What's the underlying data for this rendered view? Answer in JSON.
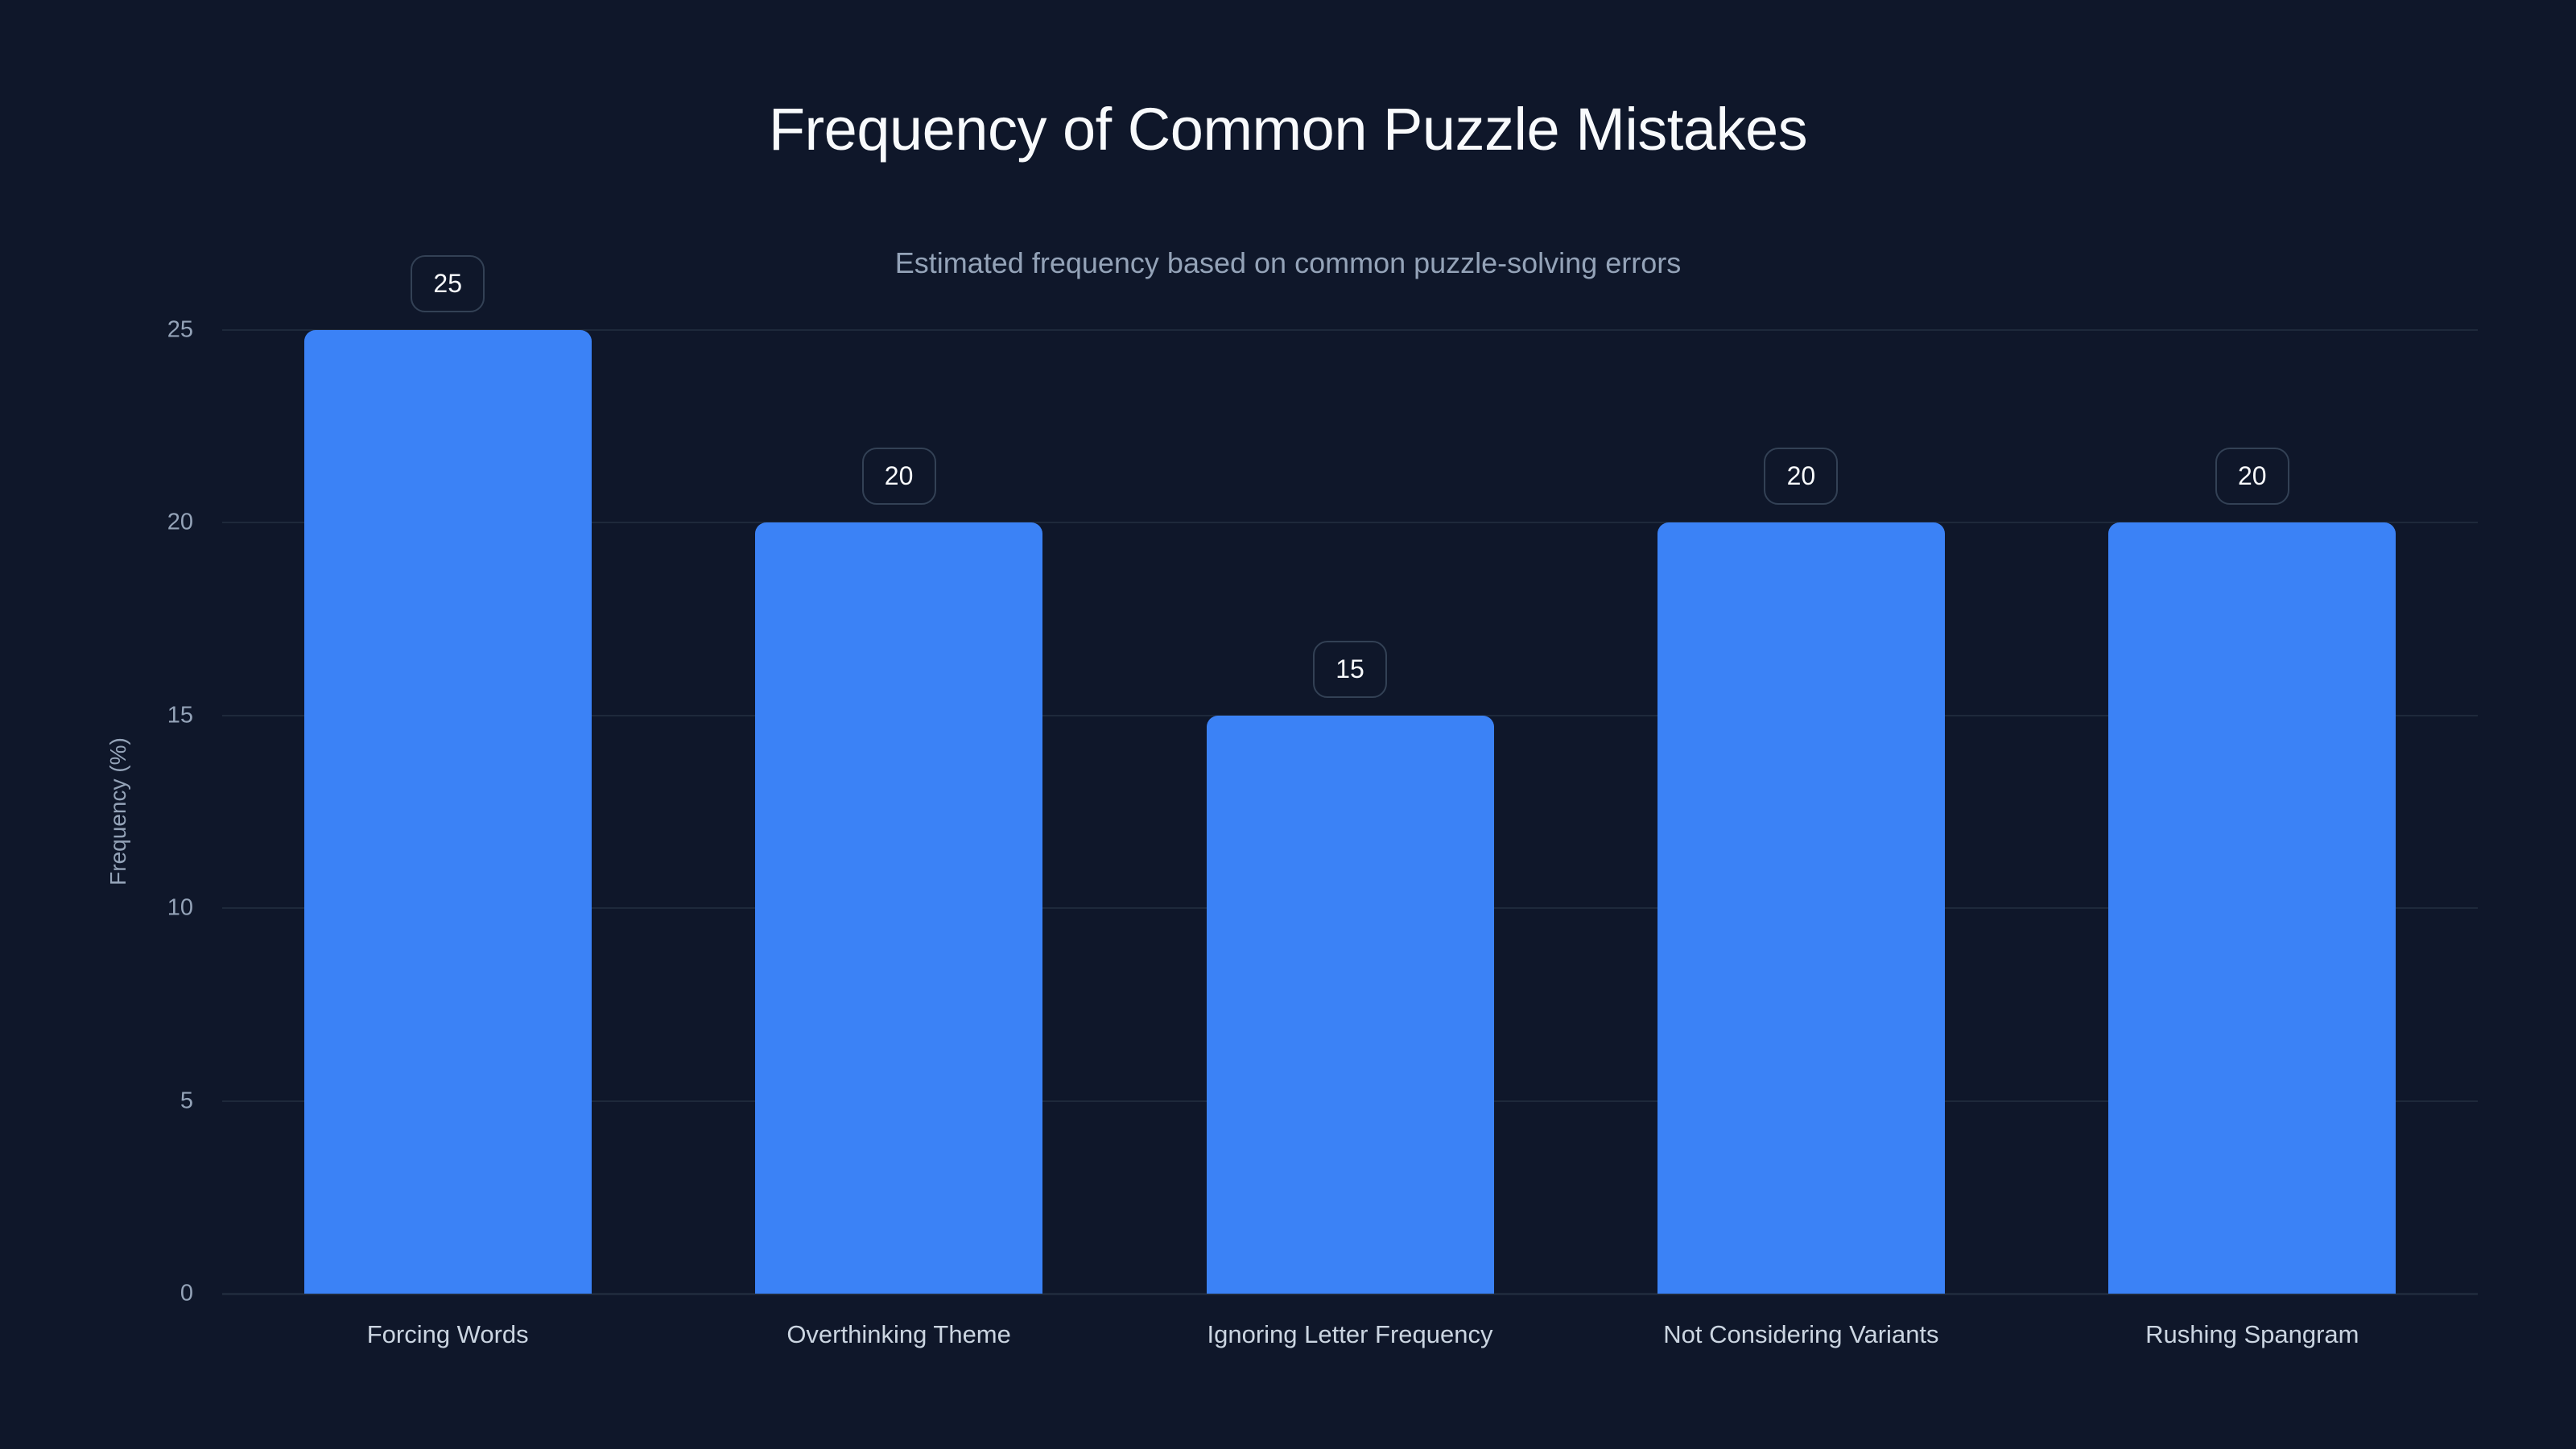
{
  "header": {
    "title": "Frequency of Common Puzzle Mistakes",
    "subtitle": "Estimated frequency based on common puzzle-solving errors"
  },
  "colors": {
    "background": "#0f172a",
    "bar": "#3b82f6",
    "grid": "#1e293b",
    "axis_text": "#94a3b8",
    "label_border": "#334155"
  },
  "chart_data": {
    "type": "bar",
    "title": "Frequency of Common Puzzle Mistakes",
    "subtitle": "Estimated frequency based on common puzzle-solving errors",
    "categories": [
      "Forcing Words",
      "Overthinking Theme",
      "Ignoring Letter Frequency",
      "Not Considering Variants",
      "Rushing Spangram"
    ],
    "values": [
      25,
      20,
      15,
      20,
      20
    ],
    "value_labels": [
      "25",
      "20",
      "15",
      "20",
      "20"
    ],
    "xlabel": "",
    "ylabel": "Frequency (%)",
    "ylim": [
      0,
      25
    ],
    "yticks": [
      "0",
      "5",
      "10",
      "15",
      "20",
      "25"
    ],
    "grid": true,
    "legend": null
  }
}
